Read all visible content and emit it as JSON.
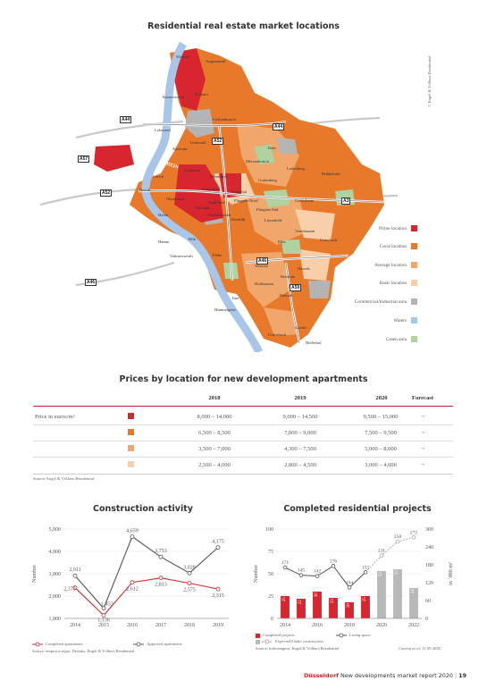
{
  "map": {
    "title": "Residential real estate market locations",
    "copyright": "© Engel & Völkers Residential",
    "roads": [
      "A44",
      "A44",
      "A57",
      "A52",
      "A52",
      "A3",
      "A46",
      "A46",
      "A59"
    ],
    "river": "RHEIN",
    "districts": [
      "Wittlaer",
      "Angermund",
      "Kaiserswerth",
      "Kalkum",
      "Lohausen",
      "Lichtenbroich",
      "Unterrath",
      "Stockum",
      "Rath",
      "Lörick",
      "Mörsenbroich",
      "Golzheim",
      "Ludenberg",
      "Hubbelrath",
      "Heerdt",
      "Derendorf",
      "Pempelfort",
      "Grafenberg",
      "Oberkassel",
      "Düsseltal",
      "Gerresheim",
      "Hafen",
      "Hamm",
      "Bilk",
      "Flingern-Nord",
      "Flingern-Süd",
      "Lierenfeld",
      "Vennhausen",
      "Unterbach",
      "Eller",
      "Volmerswerth",
      "Flehe",
      "Wersten",
      "Holthausen",
      "Hassels",
      "Reisholz",
      "Itter",
      "Benrath",
      "Himmelgeist",
      "Garath",
      "Urdenbach",
      "Hellerhof",
      "Oberbilk",
      "Stadtmitte",
      "Carlstadt",
      "Friedrichstadt"
    ],
    "legend": [
      {
        "label": "Prime location",
        "color": "#d7262f"
      },
      {
        "label": "Good location",
        "color": "#e8782a"
      },
      {
        "label": "Average location",
        "color": "#f1a66b"
      },
      {
        "label": "Basic location",
        "color": "#f8cfa8"
      },
      {
        "label": "Commercial/Industrial area",
        "color": "#b4b4b4"
      },
      {
        "label": "Waters",
        "color": "#a9c6e8"
      },
      {
        "label": "Green area",
        "color": "#aed2a0"
      }
    ]
  },
  "prices": {
    "title": "Prices by location for new development apartments",
    "columns": [
      "2018",
      "2019",
      "2020",
      "Forecast"
    ],
    "row_label": "Price in euros/m²",
    "rows": [
      {
        "color": "#d7262f",
        "values": [
          "8,000 – 14,000",
          "9,000 – 14,500",
          "9,500 – 15,000"
        ],
        "forecast": "→"
      },
      {
        "color": "#e8782a",
        "values": [
          "6,500 – 8,500",
          "7,000 – 9,000",
          "7,500 – 9,500"
        ],
        "forecast": "→"
      },
      {
        "color": "#f1a66b",
        "values": [
          "3,500 – 7,000",
          "4,300 – 7,500",
          "5,000 – 8,000"
        ],
        "forecast": "→"
      },
      {
        "color": "#f8cfa8",
        "values": [
          "2,500 – 4,000",
          "2,800 – 4,500",
          "3,000 – 4,000"
        ],
        "forecast": "→"
      }
    ],
    "source": "Source: Engel & Völkers Residential"
  },
  "chart_data": [
    {
      "type": "line",
      "title": "Construction activity",
      "ylabel": "Number",
      "x": [
        2014,
        2015,
        2016,
        2017,
        2018,
        2019
      ],
      "ylim": [
        1000,
        5000
      ],
      "yticks": [
        "1,000",
        "2,000",
        "3,000",
        "4,000",
        "5,000"
      ],
      "series": [
        {
          "name": "Completed apartments",
          "color": "#d7262f",
          "values": [
            2373,
            1136,
            2612,
            2813,
            2575,
            2315
          ],
          "labels": [
            "2,373",
            "1,136",
            "2,612",
            "2,813",
            "2,575",
            "2,315"
          ]
        },
        {
          "name": "Approved apartments",
          "color": "#555555",
          "values": [
            2911,
            1453,
            4659,
            3753,
            3028,
            4175
          ],
          "labels": [
            "2,911",
            "1,453",
            "4,659",
            "3,753",
            "3,028",
            "4,175"
          ]
        }
      ],
      "source": "Source: empirica-regio, Destatis, Engel & Völkers Residential"
    },
    {
      "type": "bar",
      "title": "Completed residential projects",
      "ylabel": "Number",
      "ylabel_right": "in ´000 m²",
      "x": [
        2014,
        2015,
        2016,
        2017,
        2018,
        2019,
        2020,
        2021,
        2022
      ],
      "xticks": [
        "2014",
        "2016",
        "2018",
        "2020",
        "2022"
      ],
      "ylim": [
        0,
        100
      ],
      "yticks": [
        "0",
        "25",
        "50",
        "75",
        "100"
      ],
      "ylim_right": [
        0,
        300
      ],
      "yticks_right": [
        "0",
        "60",
        "120",
        "180",
        "240",
        "300"
      ],
      "bars": [
        {
          "value": 25,
          "label": "25",
          "color": "#d7262f"
        },
        {
          "value": 22,
          "label": "22",
          "color": "#d7262f"
        },
        {
          "value": 30,
          "label": "30",
          "color": "#d7262f"
        },
        {
          "value": 23,
          "label": "23",
          "color": "#d7262f"
        },
        {
          "value": 18,
          "label": "18",
          "color": "#d7262f"
        },
        {
          "value": 25,
          "label": "25",
          "color": "#d7262f"
        },
        {
          "value": 53,
          "label": "53",
          "color": "#b9b9b9"
        },
        {
          "value": 55,
          "label": "55",
          "color": "#b9b9b9"
        },
        {
          "value": 34,
          "label": "34",
          "color": "#b9b9b9"
        }
      ],
      "line": {
        "name": "Living space",
        "values": [
          171,
          145,
          142,
          176,
          104,
          155,
          211,
          258,
          272
        ],
        "labels": [
          "171",
          "145",
          "142",
          "176",
          "104",
          "155",
          "211",
          "258",
          "272"
        ],
        "split_index": 5
      },
      "legend": [
        "Completed projects",
        "Living space",
        "Expected/Under construction"
      ],
      "source": "Source: bulwiengesa, Engel & Völkers Residential",
      "current": "Current as of: 11.09.2020"
    }
  ],
  "footer": {
    "city": "Düsseldorf",
    "text": "New developments market report 2020",
    "page": "19"
  }
}
